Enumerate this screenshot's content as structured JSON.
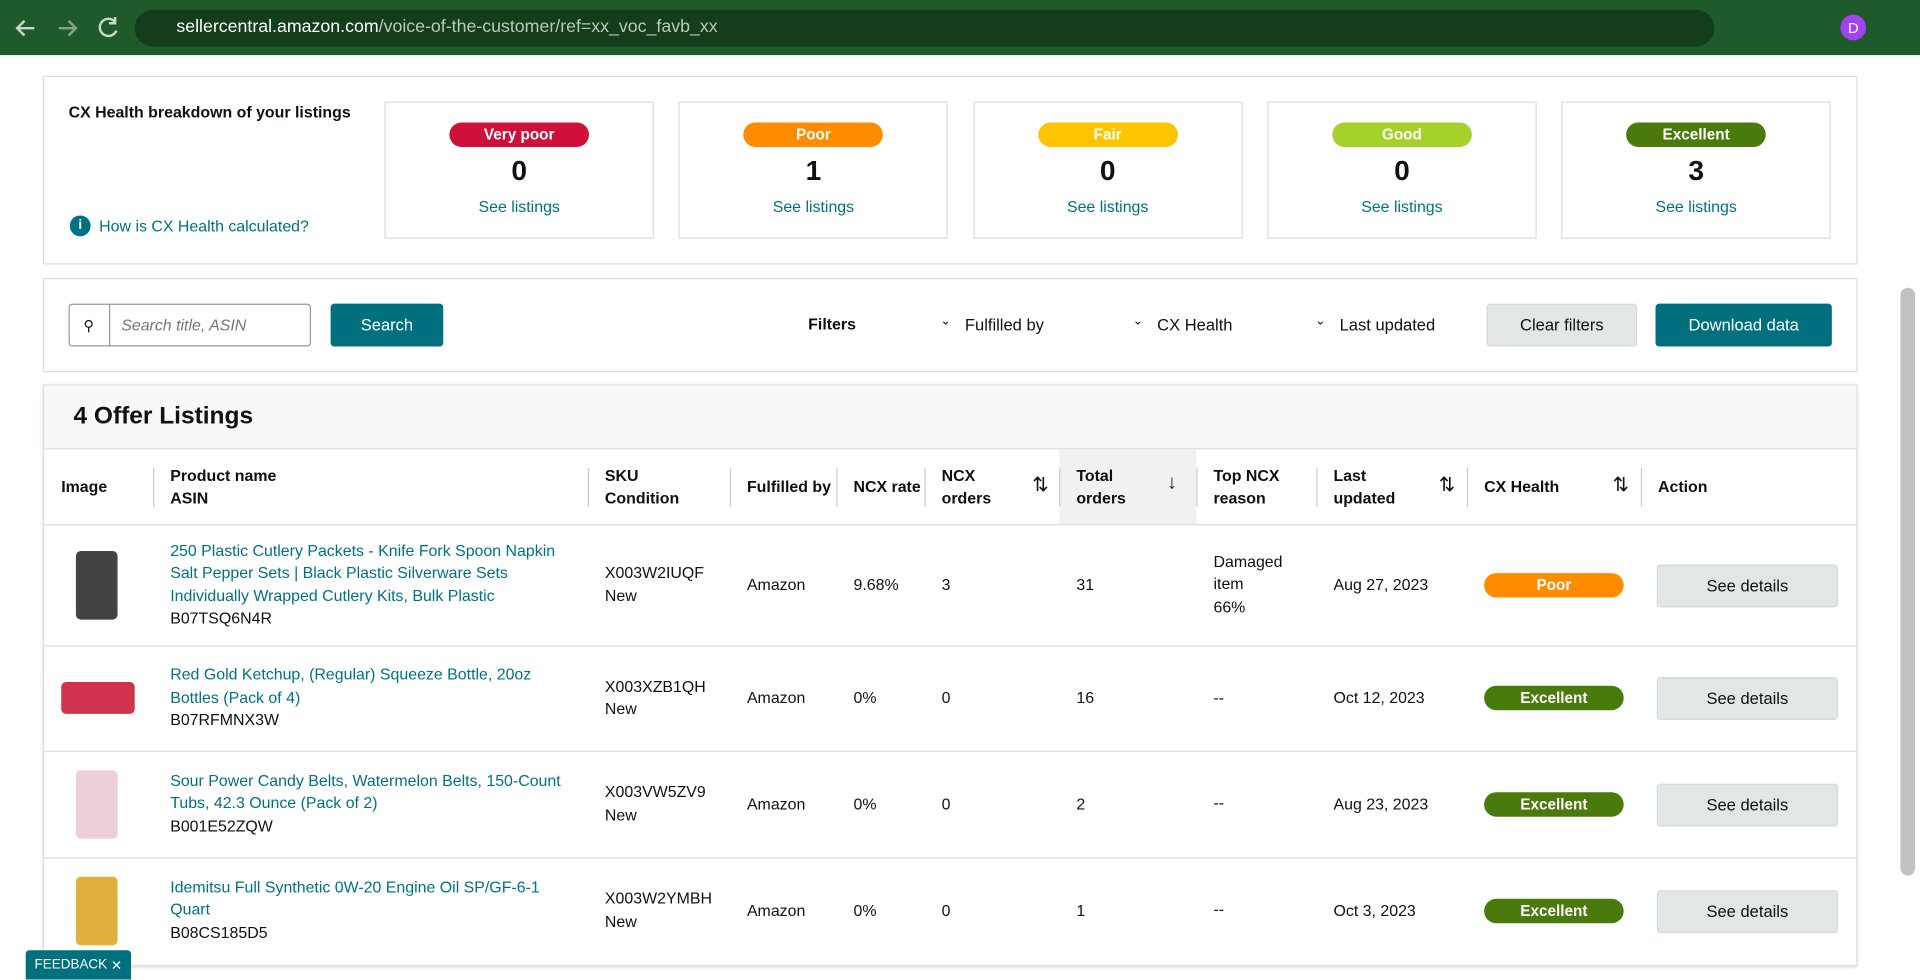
{
  "browser": {
    "url_domain": "sellercentral.amazon.com",
    "url_path": "/voice-of-the-customer/ref=xx_voc_favb_xx",
    "avatar": "D"
  },
  "health": {
    "title": "CX Health breakdown of your listings",
    "help": "How is CX Health calculated?",
    "cards": [
      {
        "label": "Very poor",
        "count": 0,
        "link": "See listings"
      },
      {
        "label": "Poor",
        "count": 1,
        "link": "See listings"
      },
      {
        "label": "Fair",
        "count": 0,
        "link": "See listings"
      },
      {
        "label": "Good",
        "count": 0,
        "link": "See listings"
      },
      {
        "label": "Excellent",
        "count": 3,
        "link": "See listings"
      }
    ]
  },
  "toolbar": {
    "search_placeholder": "Search title, ASIN",
    "search_button": "Search",
    "filters_label": "Filters",
    "filters": [
      "Fulfilled by",
      "CX Health",
      "Last updated"
    ],
    "clear": "Clear filters",
    "download": "Download data"
  },
  "listings": {
    "title": "4 Offer Listings",
    "columns": [
      [
        "Image"
      ],
      [
        "Product name",
        "ASIN"
      ],
      [
        "SKU",
        "Condition"
      ],
      [
        "Fulfilled by"
      ],
      [
        "NCX rate"
      ],
      [
        "NCX",
        "orders"
      ],
      [
        "Total",
        "orders"
      ],
      [
        "Top NCX",
        "reason"
      ],
      [
        "Last",
        "updated"
      ],
      [
        "CX Health"
      ],
      [
        "Action"
      ]
    ],
    "rows": [
      {
        "name": "250 Plastic Cutlery Packets - Knife Fork Spoon Napkin Salt Pepper Sets | Black Plastic Silverware Sets Individually Wrapped Cutlery Kits, Bulk Plastic",
        "asin": "B07TSQ6N4R",
        "sku": "X003W2IUQF",
        "condition": "New",
        "fulfilled": "Amazon",
        "ncx_rate": "9.68%",
        "ncx_orders": 3,
        "total_orders": 31,
        "reason": [
          "Damaged",
          "item",
          "66%"
        ],
        "updated": "Aug 27, 2023",
        "health": "Poor",
        "action": "See details"
      },
      {
        "name": "Red Gold Ketchup, (Regular) Squeeze Bottle, 20oz Bottles (Pack of 4)",
        "asin": "B07RFMNX3W",
        "sku": "X003XZB1QH",
        "condition": "New",
        "fulfilled": "Amazon",
        "ncx_rate": "0%",
        "ncx_orders": 0,
        "total_orders": 16,
        "reason": [
          "--"
        ],
        "updated": "Oct 12, 2023",
        "health": "Excellent",
        "action": "See details"
      },
      {
        "name": "Sour Power Candy Belts, Watermelon Belts, 150-Count Tubs, 42.3 Ounce (Pack of 2)",
        "asin": "B001E52ZQW",
        "sku": "X003VW5ZV9",
        "condition": "New",
        "fulfilled": "Amazon",
        "ncx_rate": "0%",
        "ncx_orders": 0,
        "total_orders": 2,
        "reason": [
          "--"
        ],
        "updated": "Aug 23, 2023",
        "health": "Excellent",
        "action": "See details"
      },
      {
        "name": "Idemitsu Full Synthetic 0W-20 Engine Oil SP/GF-6-1 Quart",
        "asin": "B08CS185D5",
        "sku": "X003W2YMBH",
        "condition": "New",
        "fulfilled": "Amazon",
        "ncx_rate": "0%",
        "ncx_orders": 0,
        "total_orders": 1,
        "reason": [
          "--"
        ],
        "updated": "Oct 3, 2023",
        "health": "Excellent",
        "action": "See details"
      }
    ]
  },
  "feedback": "FEEDBACK"
}
